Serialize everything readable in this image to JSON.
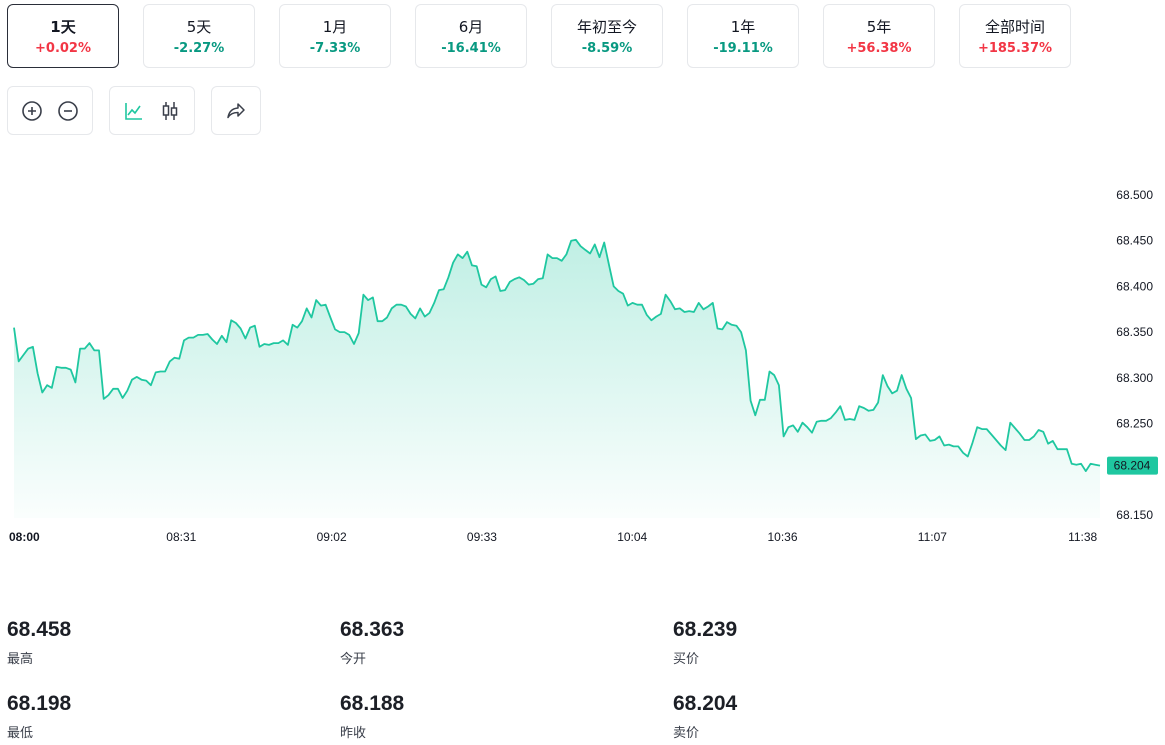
{
  "range_tabs": [
    {
      "label": "1天",
      "change": "+0.02%",
      "direction": "up",
      "active": true
    },
    {
      "label": "5天",
      "change": "-2.27%",
      "direction": "down",
      "active": false
    },
    {
      "label": "1月",
      "change": "-7.33%",
      "direction": "down",
      "active": false
    },
    {
      "label": "6月",
      "change": "-16.41%",
      "direction": "down",
      "active": false
    },
    {
      "label": "年初至今",
      "change": "-8.59%",
      "direction": "down",
      "active": false
    },
    {
      "label": "1年",
      "change": "-19.11%",
      "direction": "down",
      "active": false
    },
    {
      "label": "5年",
      "change": "+56.38%",
      "direction": "up",
      "active": false
    },
    {
      "label": "全部时间",
      "change": "+185.37%",
      "direction": "up",
      "active": false
    }
  ],
  "colors": {
    "up": "#f23645",
    "down": "#089981",
    "line": "#1fc7a0",
    "last_price_badge": "#1fc7a0",
    "icon_accent": "#1fc7a0",
    "icon": "#3a3f4a"
  },
  "toolbar": {
    "icons": [
      "zoom-in-icon",
      "zoom-out-icon",
      "line-chart-icon",
      "candlestick-icon",
      "share-icon"
    ]
  },
  "chart_data": {
    "type": "area",
    "x_ticks": [
      "08:00",
      "08:31",
      "09:02",
      "09:33",
      "10:04",
      "10:36",
      "11:07",
      "11:38"
    ],
    "x_ticks_bold_first": true,
    "y_ticks": [
      "68.500",
      "68.450",
      "68.400",
      "68.350",
      "68.300",
      "68.250",
      "68.200",
      "68.150"
    ],
    "ylim": [
      68.15,
      68.5
    ],
    "last_price": "68.204",
    "last_value": 68.204,
    "grid": false,
    "values": [
      68.355,
      68.318,
      68.325,
      68.332,
      68.334,
      68.305,
      68.284,
      68.292,
      68.289,
      68.312,
      68.311,
      68.311,
      68.309,
      68.295,
      68.332,
      68.332,
      68.338,
      68.33,
      68.33,
      68.277,
      68.281,
      68.288,
      68.288,
      68.278,
      68.286,
      68.298,
      68.301,
      68.298,
      68.297,
      68.292,
      68.306,
      68.307,
      68.307,
      68.318,
      68.322,
      68.321,
      68.341,
      68.344,
      68.344,
      68.347,
      68.347,
      68.348,
      68.342,
      68.337,
      68.346,
      68.339,
      68.363,
      68.36,
      68.354,
      68.343,
      68.355,
      68.357,
      68.334,
      68.337,
      68.336,
      68.338,
      68.338,
      68.341,
      68.336,
      68.358,
      68.355,
      68.362,
      68.376,
      68.366,
      68.385,
      68.379,
      68.38,
      68.366,
      68.353,
      68.35,
      68.35,
      68.347,
      68.337,
      68.349,
      68.391,
      68.385,
      68.388,
      68.362,
      68.362,
      68.366,
      68.376,
      68.38,
      68.38,
      68.378,
      68.37,
      68.365,
      68.376,
      68.367,
      68.371,
      68.382,
      68.396,
      68.397,
      68.41,
      68.426,
      68.435,
      68.431,
      68.438,
      68.423,
      68.422,
      68.402,
      68.399,
      68.408,
      68.411,
      68.395,
      68.396,
      68.405,
      68.408,
      68.41,
      68.407,
      68.402,
      68.403,
      68.408,
      68.409,
      68.435,
      68.431,
      68.431,
      68.428,
      68.435,
      68.45,
      68.451,
      68.444,
      68.44,
      68.436,
      68.446,
      68.432,
      68.448,
      68.424,
      68.4,
      68.395,
      68.392,
      68.379,
      68.382,
      68.38,
      68.38,
      68.369,
      68.363,
      68.367,
      68.37,
      68.391,
      68.384,
      68.375,
      68.376,
      68.372,
      68.373,
      68.372,
      68.382,
      68.375,
      68.378,
      68.382,
      68.354,
      68.353,
      68.361,
      68.358,
      68.357,
      68.35,
      68.33,
      68.275,
      68.259,
      68.276,
      68.276,
      68.307,
      68.303,
      68.292,
      68.236,
      68.246,
      68.248,
      68.241,
      68.251,
      68.246,
      68.24,
      68.252,
      68.253,
      68.253,
      68.256,
      68.262,
      68.269,
      68.254,
      68.255,
      68.254,
      68.269,
      68.267,
      68.264,
      68.265,
      68.273,
      68.303,
      68.291,
      68.283,
      68.286,
      68.303,
      68.288,
      68.278,
      68.233,
      68.237,
      68.238,
      68.231,
      68.232,
      68.236,
      68.226,
      68.227,
      68.225,
      68.225,
      68.218,
      68.214,
      68.229,
      68.246,
      68.244,
      68.244,
      68.238,
      68.232,
      68.226,
      68.221,
      68.251,
      68.245,
      68.239,
      68.232,
      68.232,
      68.236,
      68.243,
      68.241,
      68.228,
      68.231,
      68.222,
      68.222,
      68.222,
      68.206,
      68.205,
      68.206,
      68.198,
      68.206,
      68.205,
      68.204
    ]
  },
  "stats": [
    {
      "value": "68.458",
      "label": "最高"
    },
    {
      "value": "68.363",
      "label": "今开"
    },
    {
      "value": "68.239",
      "label": "买价"
    },
    {
      "value": "68.198",
      "label": "最低"
    },
    {
      "value": "68.188",
      "label": "昨收"
    },
    {
      "value": "68.204",
      "label": "卖价"
    }
  ]
}
